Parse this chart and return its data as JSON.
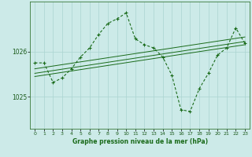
{
  "title": "Graphe pression niveau de la mer (hPa)",
  "bg_color": "#cceae8",
  "grid_color": "#aad4d0",
  "line_color": "#1a6b1a",
  "x_ticks": [
    0,
    1,
    2,
    3,
    4,
    5,
    6,
    7,
    8,
    9,
    10,
    11,
    12,
    13,
    14,
    15,
    16,
    17,
    18,
    19,
    20,
    21,
    22,
    23
  ],
  "y_ticks": [
    1025,
    1026
  ],
  "ylim": [
    1024.3,
    1027.1
  ],
  "xlim": [
    -0.5,
    23.5
  ],
  "main_line": {
    "x": [
      0,
      1,
      2,
      3,
      4,
      5,
      6,
      7,
      8,
      9,
      10,
      11,
      12,
      13,
      14,
      15,
      16,
      17,
      18,
      19,
      20,
      21,
      22,
      23
    ],
    "y": [
      1025.75,
      1025.75,
      1025.32,
      1025.42,
      1025.62,
      1025.88,
      1026.08,
      1026.38,
      1026.62,
      1026.72,
      1026.85,
      1026.28,
      1026.15,
      1026.08,
      1025.88,
      1025.48,
      1024.72,
      1024.68,
      1025.18,
      1025.52,
      1025.92,
      1026.08,
      1026.52,
      1026.18
    ]
  },
  "ref_line1": {
    "x": [
      0,
      23
    ],
    "y": [
      1025.62,
      1026.32
    ]
  },
  "ref_line2": {
    "x": [
      0,
      23
    ],
    "y": [
      1025.52,
      1026.22
    ]
  },
  "ref_line3": {
    "x": [
      0,
      23
    ],
    "y": [
      1025.45,
      1026.15
    ]
  }
}
